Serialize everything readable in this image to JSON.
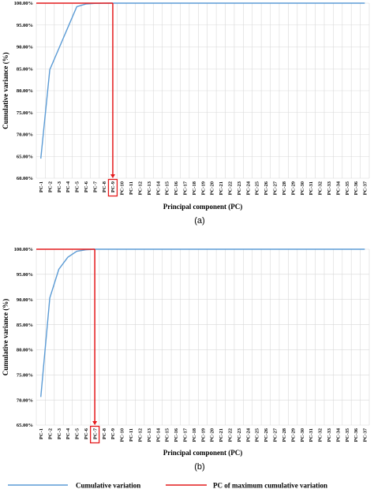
{
  "chart_data": [
    {
      "type": "line",
      "panel_label": "(a)",
      "xlabel": "Principal component (PC)",
      "ylabel": "Cumulative variance (%)",
      "categories": [
        "PC-1",
        "PC-2",
        "PC-3",
        "PC-4",
        "PC-5",
        "PC-6",
        "PC-7",
        "PC-8",
        "PC-9",
        "PC-10",
        "PC-11",
        "PC-12",
        "PC-13",
        "PC-14",
        "PC-15",
        "PC-16",
        "PC-17",
        "PC-18",
        "PC-19",
        "PC-20",
        "PC-21",
        "PC-22",
        "PC-23",
        "PC-24",
        "PC-25",
        "PC-26",
        "PC-27",
        "PC-28",
        "PC-29",
        "PC-30",
        "PC-31",
        "PC-32",
        "PC-33",
        "PC-34",
        "PC-35",
        "PC-36",
        "PC-37"
      ],
      "ylim": [
        60,
        100
      ],
      "yticks": [
        "60.00%",
        "65.00%",
        "70.00%",
        "75.00%",
        "80.00%",
        "85.00%",
        "90.00%",
        "95.00%",
        "100.00%"
      ],
      "grid": true,
      "series": [
        {
          "name": "Cumulative variation",
          "color": "#5b9bd5",
          "values": [
            64.5,
            84.8,
            89.6,
            94.4,
            99.2,
            99.8,
            99.95,
            99.99,
            100,
            100,
            100,
            100,
            100,
            100,
            100,
            100,
            100,
            100,
            100,
            100,
            100,
            100,
            100,
            100,
            100,
            100,
            100,
            100,
            100,
            100,
            100,
            100,
            100,
            100,
            100,
            100,
            100
          ]
        }
      ],
      "max_pc_marker": {
        "name": "PC of maximum cumulative variation",
        "color": "#e41a1c",
        "category": "PC-9"
      }
    },
    {
      "type": "line",
      "panel_label": "(b)",
      "xlabel": "Principal component (PC)",
      "ylabel": "Cumulative variance (%)",
      "categories": [
        "PC-1",
        "PC-2",
        "PC-3",
        "PC-4",
        "PC-5",
        "PC-6",
        "PC-7",
        "PC-8",
        "PC-9",
        "PC-10",
        "PC-11",
        "PC-12",
        "PC-13",
        "PC-14",
        "PC-15",
        "PC-16",
        "PC-17",
        "PC-18",
        "PC-19",
        "PC-20",
        "PC-21",
        "PC-22",
        "PC-23",
        "PC-24",
        "PC-25",
        "PC-26",
        "PC-27",
        "PC-28",
        "PC-29",
        "PC-30",
        "PC-31",
        "PC-32",
        "PC-33",
        "PC-34",
        "PC-35",
        "PC-36",
        "PC-37"
      ],
      "ylim": [
        65,
        100
      ],
      "yticks": [
        "65.00%",
        "70.00%",
        "75.00%",
        "80.00%",
        "85.00%",
        "90.00%",
        "95.00%",
        "100.00%"
      ],
      "grid": true,
      "series": [
        {
          "name": "Cumulative variation",
          "color": "#5b9bd5",
          "values": [
            70.6,
            90.3,
            96.0,
            98.4,
            99.6,
            99.9,
            100,
            100,
            100,
            100,
            100,
            100,
            100,
            100,
            100,
            100,
            100,
            100,
            100,
            100,
            100,
            100,
            100,
            100,
            100,
            100,
            100,
            100,
            100,
            100,
            100,
            100,
            100,
            100,
            100,
            100,
            100
          ]
        }
      ],
      "max_pc_marker": {
        "name": "PC of maximum cumulative variation",
        "color": "#e41a1c",
        "category": "PC-7"
      }
    }
  ],
  "legend": [
    {
      "label": "Cumulative variation",
      "color": "#5b9bd5"
    },
    {
      "label": "PC of maximum cumulative variation",
      "color": "#e41a1c"
    }
  ]
}
